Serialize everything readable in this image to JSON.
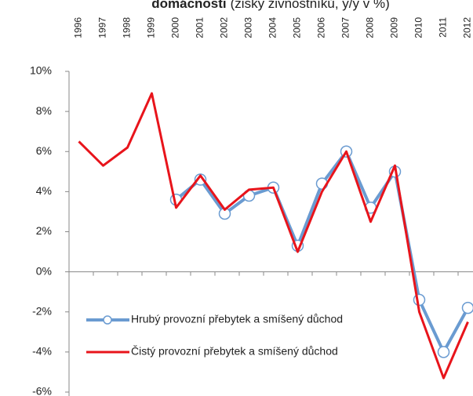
{
  "chart_data": {
    "type": "line",
    "title": "domácnosti",
    "subtitle": "(zisky živnostníků, y/y v %)",
    "categories": [
      "1996",
      "1997",
      "1998",
      "1999",
      "2000",
      "2001",
      "2002",
      "2003",
      "2004",
      "2005",
      "2006",
      "2007",
      "2008",
      "2009",
      "2010",
      "2011",
      "2012"
    ],
    "series": [
      {
        "name": "Hrubý provozní přebytek a smíšený důchod",
        "color": "#6a9bd1",
        "marker": "circle",
        "values": [
          null,
          null,
          null,
          null,
          3.6,
          4.6,
          2.9,
          3.8,
          4.2,
          1.3,
          4.4,
          6.0,
          3.2,
          5.0,
          -1.4,
          -4.0,
          -1.8
        ]
      },
      {
        "name": "Čistý provozní přebytek a smíšený důchod",
        "color": "#e8141b",
        "values": [
          6.5,
          5.3,
          6.2,
          8.9,
          3.2,
          4.8,
          3.1,
          4.1,
          4.2,
          1.0,
          4.0,
          6.0,
          2.5,
          5.3,
          -2.0,
          -5.3,
          -2.5
        ]
      }
    ],
    "ylim": [
      -6,
      10
    ],
    "yticks": [
      {
        "value": 10,
        "label": "10%"
      },
      {
        "value": 8,
        "label": "8%"
      },
      {
        "value": 6,
        "label": "6%"
      },
      {
        "value": 4,
        "label": "4%"
      },
      {
        "value": 2,
        "label": "2%"
      },
      {
        "value": 0,
        "label": "0%"
      },
      {
        "value": -2,
        "label": "-2%"
      },
      {
        "value": -4,
        "label": "-4%"
      },
      {
        "value": -6,
        "label": "-6%"
      }
    ],
    "grid": false,
    "legend": "lower-left"
  }
}
